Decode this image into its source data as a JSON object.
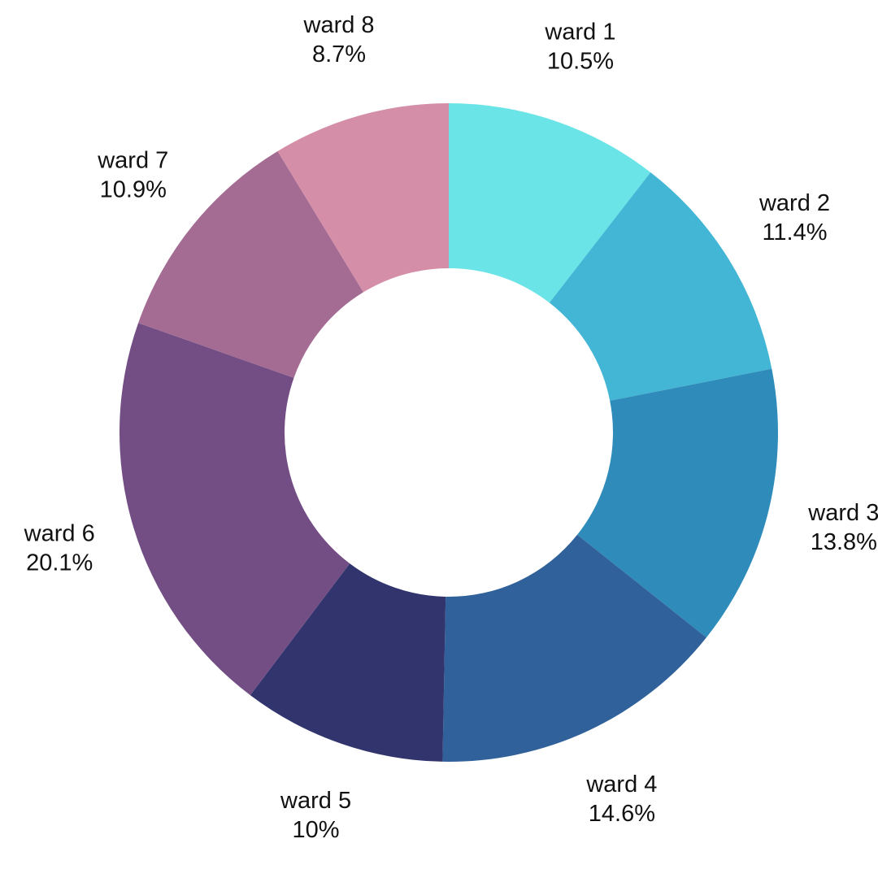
{
  "chart_data": {
    "type": "pie",
    "style": "donut",
    "title": "",
    "categories": [
      "ward 1",
      "ward 2",
      "ward 3",
      "ward 4",
      "ward 5",
      "ward 6",
      "ward 7",
      "ward 8"
    ],
    "values": [
      10.5,
      11.4,
      13.8,
      14.6,
      10,
      20.1,
      10.9,
      8.7
    ],
    "value_labels": [
      "10.5%",
      "11.4%",
      "13.8%",
      "14.6%",
      "10%",
      "20.1%",
      "10.9%",
      "8.7%"
    ],
    "colors": [
      "#6be4e7",
      "#43b6d6",
      "#2e8bba",
      "#31619a",
      "#32356d",
      "#734e85",
      "#a46b93",
      "#d58ea8"
    ],
    "start": "top",
    "direction": "clockwise",
    "legend": "none"
  }
}
